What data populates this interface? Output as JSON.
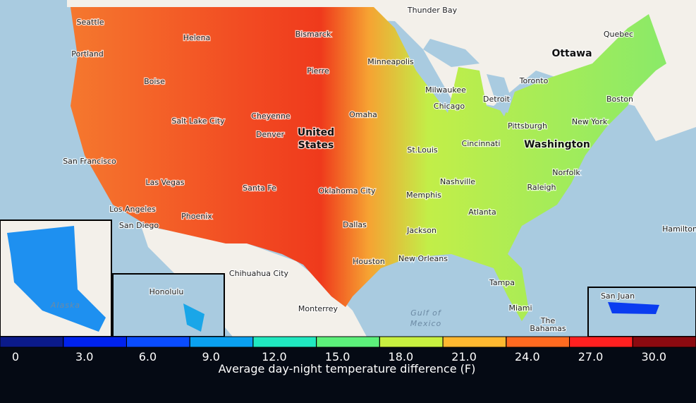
{
  "map": {
    "labels": [
      "Thunder Bay",
      "Seattle",
      "Quebec",
      "Helena",
      "Bismarck",
      "Ottawa",
      "Portland",
      "Minneapolis",
      "Pierre",
      "Boise",
      "Toronto",
      "Milwaukee",
      "Detroit",
      "Boston",
      "Chicago",
      "Cheyenne",
      "Omaha",
      "Salt Lake City",
      "New York",
      "Pittsburgh",
      "Denver",
      "United",
      "States",
      "Washington",
      "San Francisco",
      "St.Louis",
      "Cincinnati",
      "Norfolk",
      "Nashville",
      "Las Vegas",
      "Raleigh",
      "Santa Fe",
      "Oklahoma City",
      "Memphis",
      "Atlanta",
      "Los Angeles",
      "Phoenix",
      "Dallas",
      "San Diego",
      "Hamilton",
      "Jackson",
      "New Orleans",
      "Houston",
      "Chihuahua City",
      "Tampa",
      "Honolulu",
      "San Juan",
      "Gulf of",
      "Mexico",
      "Alaska",
      "Monterrey",
      "Miami",
      "The",
      "Bahamas"
    ]
  },
  "legend": {
    "title": "Average day-night temperature difference (F)",
    "colors": [
      "#0b1a8a",
      "#0022ee",
      "#0a4cff",
      "#0aa0f0",
      "#20e8c0",
      "#5cf07a",
      "#c8f040",
      "#ffb830",
      "#ff6a20",
      "#ff2020",
      "#8b0a10"
    ],
    "ticks": [
      0,
      {
        "value": 3,
        "label": "3.0"
      },
      {
        "value": 6,
        "label": "6.0"
      },
      {
        "value": 9,
        "label": "9.0"
      },
      {
        "value": 12,
        "label": "12.0"
      },
      {
        "value": 15,
        "label": "15.0"
      },
      {
        "value": 18,
        "label": "18.0"
      },
      {
        "value": 21,
        "label": "21.0"
      },
      {
        "value": 24,
        "label": "24.0"
      },
      {
        "value": 27,
        "label": "27.0"
      },
      {
        "value": 30,
        "label": "30.0"
      }
    ]
  }
}
